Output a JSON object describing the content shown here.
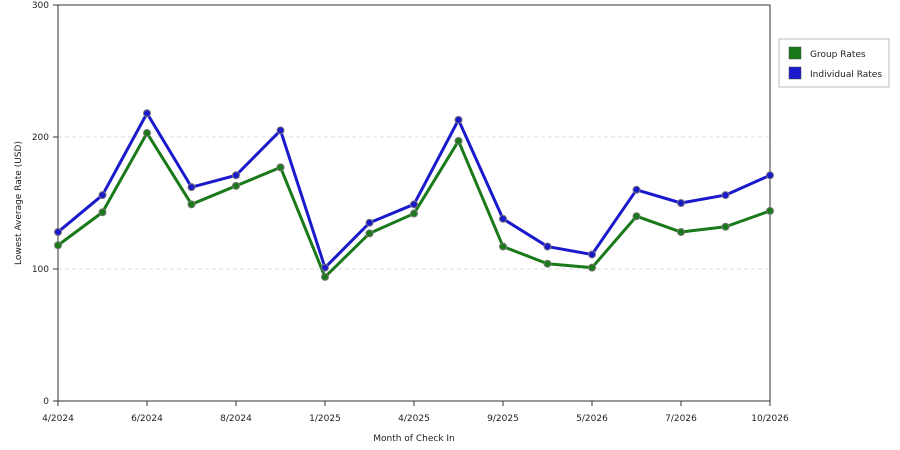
{
  "chart_data": {
    "type": "line",
    "title": "",
    "xlabel": "Month of Check In",
    "ylabel": "Lowest Average Rate (USD)",
    "ylim": [
      0,
      300
    ],
    "yticks": [
      0,
      100,
      200,
      300
    ],
    "grid": "horizontal dashed",
    "legend_position": "right",
    "x_tick_labels": [
      "4/2024",
      "6/2024",
      "8/2024",
      "1/2025",
      "4/2025",
      "9/2025",
      "5/2026",
      "7/2026",
      "10/2026"
    ],
    "x_tick_positions": [
      0,
      2,
      4,
      6,
      8,
      10,
      12,
      14,
      16
    ],
    "series": [
      {
        "name": "Group Rates",
        "color": "#1a7a1a",
        "values": [
          118,
          143,
          203,
          149,
          163,
          177,
          94,
          127,
          142,
          197,
          117,
          104,
          101,
          140,
          128,
          132,
          144
        ]
      },
      {
        "name": "Individual Rates",
        "color": "#1a1acc",
        "values": [
          128,
          156,
          218,
          162,
          171,
          205,
          101,
          135,
          149,
          213,
          138,
          117,
          111,
          160,
          150,
          156,
          171
        ]
      }
    ]
  }
}
